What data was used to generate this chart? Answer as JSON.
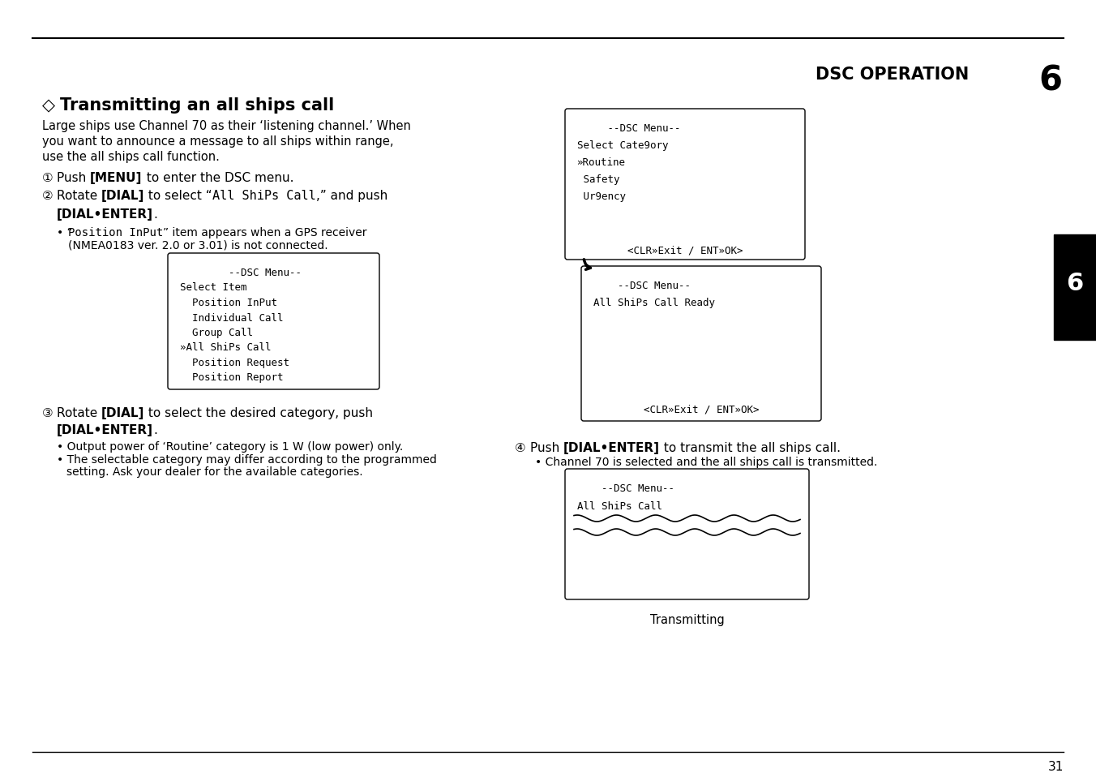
{
  "bg_color": "#ffffff",
  "header_text": "DSC OPERATION",
  "header_num": "6",
  "section_diamond": "◇",
  "section_title": "Transmitting an all ships call",
  "intro_lines": [
    "Large ships use Channel 70 as their ‘listening channel.’ When",
    "you want to announce a message to all ships within range,",
    "use the all ships call function."
  ],
  "box1_lines": [
    "        --DSC Menu--",
    "Select Item",
    "  Position InPut",
    "  Individual Call",
    "  Group Call",
    "»All ShiPs Call",
    "  Position Request",
    "  Position Report"
  ],
  "box2_lines": [
    "     --DSC Menu--",
    "Select Cate9ory",
    "»Routine",
    " Safety",
    " Ur9ency"
  ],
  "box2_bottom": "<CLR»Exit / ENT»OK>",
  "box3_lines": [
    "    --DSC Menu--",
    "All ShiPs Call Ready"
  ],
  "box3_bottom": "<CLR»Exit / ENT»OK>",
  "box4_lines": [
    "    --DSC Menu--",
    "All ShiPs Call"
  ],
  "box4_label": "Transmitting",
  "sidebar_num": "6",
  "page_num": "31"
}
